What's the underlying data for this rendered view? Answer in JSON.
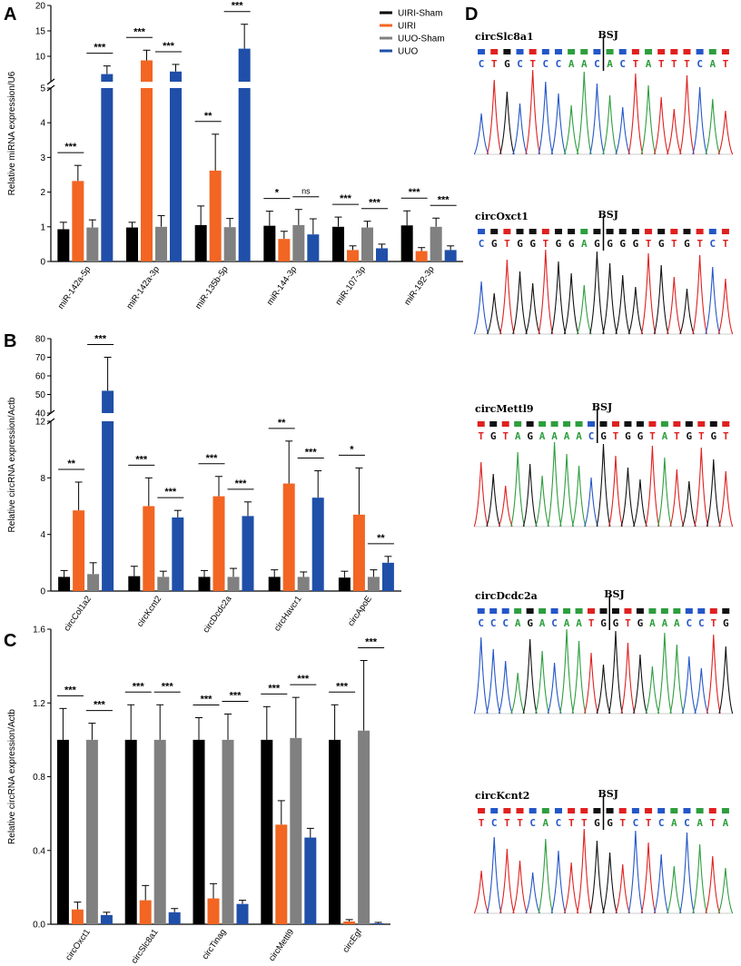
{
  "colors": {
    "UIRI-Sham": "#000000",
    "UIRI": "#f26522",
    "UUO-Sham": "#808080",
    "UUO": "#1f4fa8",
    "A": "#2e9e3e",
    "C": "#2456c8",
    "G": "#111111",
    "T": "#e02020"
  },
  "legend": [
    "UIRI-Sham",
    "UIRI",
    "UUO-Sham",
    "UUO"
  ],
  "chart_data": [
    {
      "panel": "A",
      "type": "bar",
      "ylabel": "Relative miRNA expression/U6",
      "axis_break": true,
      "lower_ylim": [
        0,
        5
      ],
      "lower_ticks": [
        "0",
        "1",
        "2",
        "3",
        "4"
      ],
      "upper_ylim": [
        5,
        20
      ],
      "upper_ticks": [
        "5",
        "10",
        "15",
        "20"
      ],
      "categories": [
        "miR-142a-5p",
        "miR-142a-3p",
        "miR-135b-5p",
        "miR-144-3p",
        "miR-107-3p",
        "miR-192-3p"
      ],
      "series": [
        {
          "name": "UIRI-Sham",
          "values": [
            0.93,
            0.98,
            1.05,
            1.03,
            1.0,
            1.04
          ],
          "errors": [
            0.2,
            0.15,
            0.55,
            0.42,
            0.28,
            0.42
          ]
        },
        {
          "name": "UIRI",
          "values": [
            2.32,
            9.2,
            2.62,
            0.65,
            0.33,
            0.3
          ],
          "errors": [
            0.45,
            2.0,
            1.05,
            0.22,
            0.12,
            0.1
          ]
        },
        {
          "name": "UUO-Sham",
          "values": [
            0.98,
            1.0,
            0.99,
            1.05,
            0.98,
            1.0
          ],
          "errors": [
            0.22,
            0.32,
            0.25,
            0.45,
            0.18,
            0.25
          ]
        },
        {
          "name": "UUO",
          "values": [
            6.5,
            7.0,
            11.5,
            0.78,
            0.38,
            0.33
          ],
          "errors": [
            1.6,
            1.4,
            4.8,
            0.45,
            0.12,
            0.12
          ]
        }
      ],
      "significance": [
        {
          "cat": 0,
          "pair": "sham-uiri",
          "label": "***"
        },
        {
          "cat": 0,
          "pair": "sham-uuo",
          "label": "***"
        },
        {
          "cat": 1,
          "pair": "sham-uiri",
          "label": "***"
        },
        {
          "cat": 1,
          "pair": "sham-uuo",
          "label": "***"
        },
        {
          "cat": 2,
          "pair": "sham-uiri",
          "label": "**"
        },
        {
          "cat": 2,
          "pair": "sham-uuo",
          "label": "***"
        },
        {
          "cat": 3,
          "pair": "sham-uiri",
          "label": "*"
        },
        {
          "cat": 3,
          "pair": "sham-uuo",
          "label": "ns"
        },
        {
          "cat": 4,
          "pair": "sham-uiri",
          "label": "***"
        },
        {
          "cat": 4,
          "pair": "sham-uuo",
          "label": "***"
        },
        {
          "cat": 5,
          "pair": "sham-uiri",
          "label": "***"
        },
        {
          "cat": 5,
          "pair": "sham-uuo",
          "label": "***"
        }
      ]
    },
    {
      "panel": "B",
      "type": "bar",
      "ylabel": "Relative circRNA expression/Actb",
      "axis_break": true,
      "lower_ylim": [
        0,
        12
      ],
      "lower_ticks": [
        "0",
        "4",
        "8",
        "12"
      ],
      "upper_ylim": [
        40,
        80
      ],
      "upper_ticks": [
        "40",
        "50",
        "60",
        "70",
        "80"
      ],
      "categories": [
        "circCol1a2",
        "circKcnt2",
        "circDcdc2a",
        "circHavcr1",
        "circApoE"
      ],
      "series": [
        {
          "name": "UIRI-Sham",
          "values": [
            1.0,
            1.05,
            1.0,
            1.0,
            0.95
          ],
          "errors": [
            0.45,
            0.7,
            0.45,
            0.5,
            0.45
          ]
        },
        {
          "name": "UIRI",
          "values": [
            5.7,
            6.0,
            6.7,
            7.6,
            5.4
          ],
          "errors": [
            2.0,
            2.0,
            1.4,
            3.0,
            3.3
          ]
        },
        {
          "name": "UUO-Sham",
          "values": [
            1.2,
            1.0,
            1.0,
            1.0,
            1.0
          ],
          "errors": [
            0.8,
            0.4,
            0.6,
            0.35,
            0.5
          ]
        },
        {
          "name": "UUO",
          "values": [
            52,
            5.2,
            5.3,
            6.6,
            2.0
          ],
          "errors": [
            18,
            0.5,
            1.0,
            1.9,
            0.45
          ]
        }
      ],
      "significance": [
        {
          "cat": 0,
          "pair": "sham-uiri",
          "label": "**"
        },
        {
          "cat": 0,
          "pair": "sham-uuo",
          "label": "***"
        },
        {
          "cat": 1,
          "pair": "sham-uiri",
          "label": "***"
        },
        {
          "cat": 1,
          "pair": "sham-uuo",
          "label": "***"
        },
        {
          "cat": 2,
          "pair": "sham-uiri",
          "label": "***"
        },
        {
          "cat": 2,
          "pair": "sham-uuo",
          "label": "***"
        },
        {
          "cat": 3,
          "pair": "sham-uiri",
          "label": "**"
        },
        {
          "cat": 3,
          "pair": "sham-uuo",
          "label": "***"
        },
        {
          "cat": 4,
          "pair": "sham-uiri",
          "label": "*"
        },
        {
          "cat": 4,
          "pair": "sham-uuo",
          "label": "**"
        }
      ]
    },
    {
      "panel": "C",
      "type": "bar",
      "ylabel": "Relative circRNA expression/Actb",
      "axis_break": false,
      "ylim": [
        0,
        1.6
      ],
      "ticks": [
        "0.0",
        "0.4",
        "0.8",
        "1.2",
        "1.6"
      ],
      "categories": [
        "circOxct1",
        "circSlc8a1",
        "circTinag",
        "circMettl9",
        "circEgf"
      ],
      "series": [
        {
          "name": "UIRI-Sham",
          "values": [
            1.0,
            1.0,
            1.0,
            1.0,
            1.0
          ],
          "errors": [
            0.17,
            0.19,
            0.12,
            0.18,
            0.19
          ]
        },
        {
          "name": "UIRI",
          "values": [
            0.08,
            0.13,
            0.14,
            0.54,
            0.015
          ],
          "errors": [
            0.04,
            0.08,
            0.08,
            0.13,
            0.01
          ]
        },
        {
          "name": "UUO-Sham",
          "values": [
            1.0,
            1.0,
            1.0,
            1.01,
            1.05
          ],
          "errors": [
            0.09,
            0.19,
            0.14,
            0.22,
            0.38
          ]
        },
        {
          "name": "UUO",
          "values": [
            0.05,
            0.065,
            0.11,
            0.47,
            0.005
          ],
          "errors": [
            0.015,
            0.02,
            0.02,
            0.05,
            0.005
          ]
        }
      ],
      "significance": [
        {
          "cat": 0,
          "pair": "sham-uiri",
          "label": "***"
        },
        {
          "cat": 0,
          "pair": "sham-uuo",
          "label": "***"
        },
        {
          "cat": 1,
          "pair": "sham-uiri",
          "label": "***"
        },
        {
          "cat": 1,
          "pair": "sham-uuo",
          "label": "***"
        },
        {
          "cat": 2,
          "pair": "sham-uiri",
          "label": "***"
        },
        {
          "cat": 2,
          "pair": "sham-uuo",
          "label": "***"
        },
        {
          "cat": 3,
          "pair": "sham-uiri",
          "label": "***"
        },
        {
          "cat": 3,
          "pair": "sham-uuo",
          "label": "***"
        },
        {
          "cat": 4,
          "pair": "sham-uiri",
          "label": "***"
        },
        {
          "cat": 4,
          "pair": "sham-uuo",
          "label": "***"
        }
      ]
    }
  ],
  "sequencing": {
    "panel": "D",
    "junction_label": "BSJ",
    "traces": [
      {
        "name": "circSlc8a1",
        "bases": [
          "C",
          "T",
          "G",
          "C",
          "T",
          "C",
          "C",
          "A",
          "A",
          "C",
          "A",
          "C",
          "T",
          "A",
          "T",
          "T",
          "T",
          "C",
          "A",
          "T"
        ],
        "bsj_after": 10
      },
      {
        "name": "circOxct1",
        "bases": [
          "C",
          "G",
          "T",
          "G",
          "G",
          "T",
          "G",
          "G",
          "A",
          "G",
          "G",
          "G",
          "G",
          "T",
          "G",
          "T",
          "G",
          "T",
          "C",
          "T"
        ],
        "bsj_after": 10
      },
      {
        "name": "circMettl9",
        "bases": [
          "T",
          "G",
          "T",
          "A",
          "G",
          "A",
          "A",
          "A",
          "A",
          "C",
          "G",
          "T",
          "G",
          "G",
          "T",
          "A",
          "T",
          "G",
          "T",
          "G",
          "T"
        ],
        "bsj_after": 10
      },
      {
        "name": "circDcdc2a",
        "bases": [
          "C",
          "C",
          "C",
          "A",
          "G",
          "A",
          "C",
          "A",
          "A",
          "T",
          "G",
          "G",
          "T",
          "G",
          "A",
          "A",
          "A",
          "C",
          "C",
          "T",
          "G"
        ],
        "bsj_after": 11
      },
      {
        "name": "circKcnt2",
        "bases": [
          "T",
          "C",
          "T",
          "T",
          "C",
          "A",
          "C",
          "T",
          "T",
          "G",
          "G",
          "T",
          "C",
          "T",
          "C",
          "A",
          "C",
          "A",
          "T",
          "A"
        ],
        "bsj_after": 10
      }
    ]
  }
}
